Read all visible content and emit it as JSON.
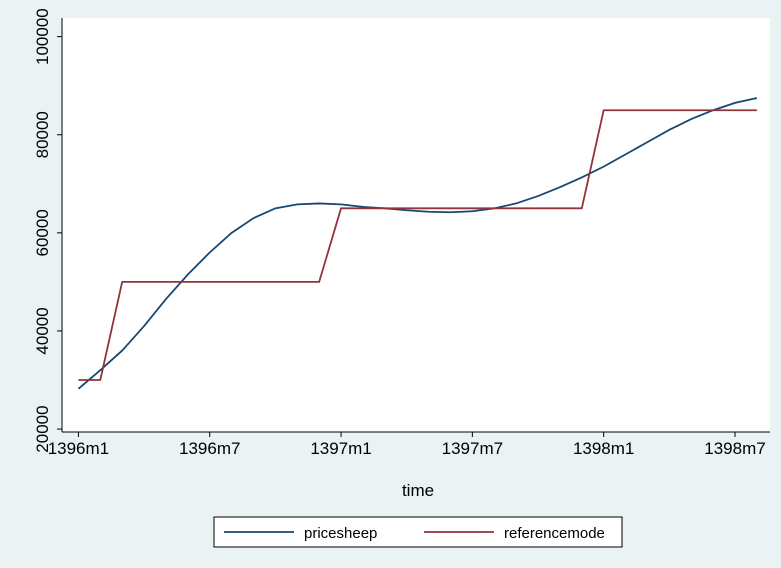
{
  "chart_data": {
    "type": "line",
    "x_label": "time",
    "x": [
      -6768,
      -6767,
      -6766,
      -6765,
      -6764,
      -6763,
      -6762,
      -6761,
      -6760,
      -6759,
      -6758,
      -6757,
      -6756,
      -6755,
      -6754,
      -6753,
      -6752,
      -6751,
      -6750,
      -6749,
      -6748,
      -6747,
      -6746,
      -6745,
      -6744,
      -6743,
      -6742,
      -6741,
      -6740,
      -6739,
      -6738,
      -6737
    ],
    "series": [
      {
        "name": "pricesheep",
        "color": "#1a476f",
        "values": [
          28200,
          32000,
          36000,
          41000,
          46500,
          51500,
          56000,
          60000,
          63000,
          65000,
          65800,
          66000,
          65800,
          65300,
          65000,
          64600,
          64300,
          64200,
          64400,
          65000,
          66000,
          67500,
          69300,
          71300,
          73500,
          76000,
          78500,
          81000,
          83200,
          85000,
          86500,
          87500
        ]
      },
      {
        "name": "referencemode",
        "color": "#90353b",
        "values": [
          30000,
          30000,
          50000,
          50000,
          50000,
          50000,
          50000,
          50000,
          50000,
          50000,
          50000,
          50000,
          65000,
          65000,
          65000,
          65000,
          65000,
          65000,
          65000,
          65000,
          65000,
          65000,
          65000,
          65000,
          85000,
          85000,
          85000,
          85000,
          85000,
          85000,
          85000,
          85000
        ]
      }
    ],
    "xlim": [
      -6768.75,
      -6736.4
    ],
    "xticks": [
      {
        "value": -6768,
        "label": "1396m1"
      },
      {
        "value": -6762,
        "label": "1396m7"
      },
      {
        "value": -6756,
        "label": "1397m1"
      },
      {
        "value": -6750,
        "label": "1397m7"
      },
      {
        "value": -6744,
        "label": "1398m1"
      },
      {
        "value": -6738,
        "label": "1398m7"
      }
    ],
    "ylim": [
      19400,
      103800
    ],
    "yticks": [
      20000,
      40000,
      60000,
      80000,
      100000
    ],
    "grid": false,
    "legend": "bottom"
  }
}
